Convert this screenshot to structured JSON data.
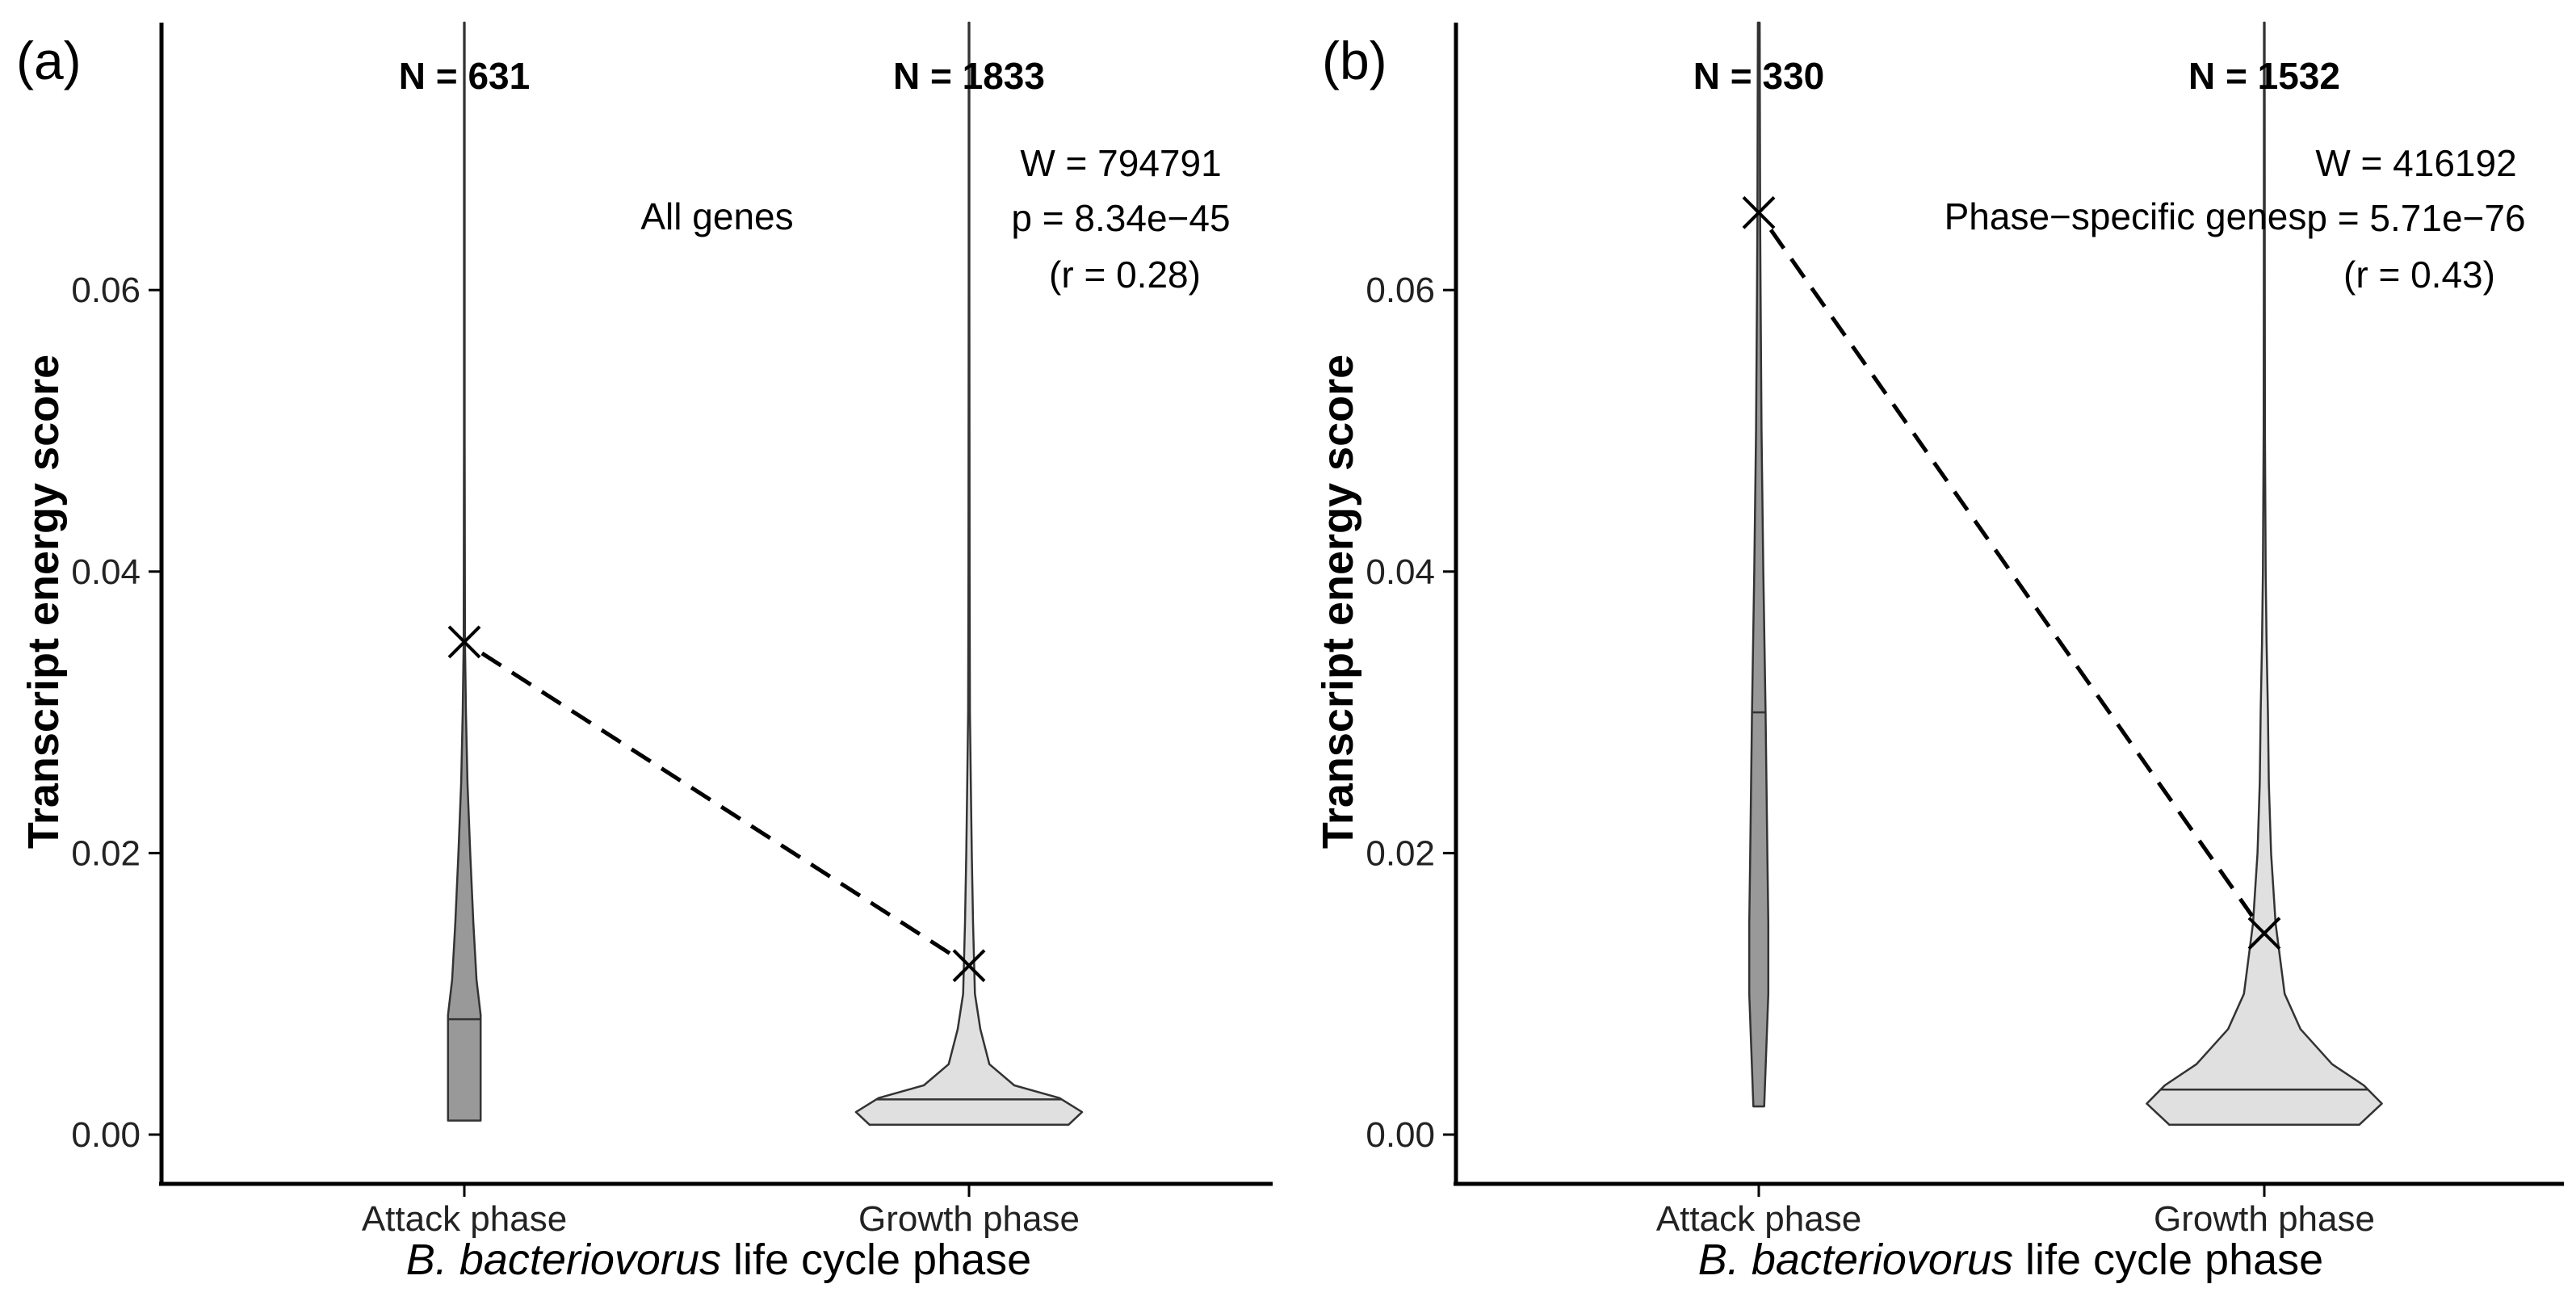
{
  "chart_data": [
    {
      "type": "violin",
      "panel_label": "(a)",
      "title": "All genes",
      "ylabel": "Transcript energy score",
      "xlabel_italic": "B. bacteriovorus",
      "xlabel_rest": " life cycle phase",
      "ylim": [
        -0.0035,
        0.079
      ],
      "yticks": [
        0.0,
        0.02,
        0.04,
        0.06
      ],
      "ytick_labels": [
        "0.00",
        "0.02",
        "0.04",
        "0.06"
      ],
      "categories": [
        "Attack phase",
        "Growth phase"
      ],
      "n_labels": [
        "N = 631",
        "N = 1833"
      ],
      "stats": [
        "W = 794791",
        "p = 8.34e−45",
        "(r = 0.28)"
      ],
      "means": [
        0.035,
        0.012
      ],
      "medians": [
        0.0082,
        0.0025
      ],
      "colors": [
        "#999999",
        "#e0e0e0"
      ],
      "violins": [
        {
          "name": "Attack phase",
          "max": 0.079,
          "profile": [
            [
              0.001,
              0.036
            ],
            [
              0.0085,
              0.036
            ],
            [
              0.011,
              0.027
            ],
            [
              0.015,
              0.02
            ],
            [
              0.02,
              0.013
            ],
            [
              0.025,
              0.007
            ],
            [
              0.03,
              0.0035
            ],
            [
              0.035,
              0.0015
            ],
            [
              0.05,
              0.0008
            ],
            [
              0.079,
              0.0007
            ]
          ]
        },
        {
          "name": "Growth phase",
          "max": 0.079,
          "profile": [
            [
              0.0007,
              0.22
            ],
            [
              0.0016,
              0.25
            ],
            [
              0.0026,
              0.2
            ],
            [
              0.0035,
              0.1
            ],
            [
              0.005,
              0.045
            ],
            [
              0.0075,
              0.025
            ],
            [
              0.01,
              0.013
            ],
            [
              0.015,
              0.009
            ],
            [
              0.02,
              0.006
            ],
            [
              0.025,
              0.004
            ],
            [
              0.03,
              0.002
            ],
            [
              0.04,
              0.0012
            ],
            [
              0.06,
              0.0008
            ],
            [
              0.079,
              0.0007
            ]
          ]
        }
      ]
    },
    {
      "type": "violin",
      "panel_label": "(b)",
      "title": "Phase−specific genes",
      "ylabel": "Transcript energy score",
      "xlabel_italic": "B. bacteriovorus",
      "xlabel_rest": " life cycle phase",
      "ylim": [
        -0.0035,
        0.079
      ],
      "yticks": [
        0.0,
        0.02,
        0.04,
        0.06
      ],
      "ytick_labels": [
        "0.00",
        "0.02",
        "0.04",
        "0.06"
      ],
      "categories": [
        "Attack phase",
        "Growth phase"
      ],
      "n_labels": [
        "N = 330",
        "N = 1532"
      ],
      "stats": [
        "W = 416192",
        "p = 5.71e−76",
        "(r = 0.43)"
      ],
      "means": [
        0.0655,
        0.0143
      ],
      "medians": [
        0.03,
        0.0032
      ],
      "colors": [
        "#999999",
        "#e0e0e0"
      ],
      "violins": [
        {
          "name": "Attack phase",
          "max": 0.079,
          "profile": [
            [
              0.002,
              0.012
            ],
            [
              0.01,
              0.021
            ],
            [
              0.015,
              0.021
            ],
            [
              0.02,
              0.019
            ],
            [
              0.025,
              0.017
            ],
            [
              0.03,
              0.015
            ],
            [
              0.04,
              0.01
            ],
            [
              0.05,
              0.006
            ],
            [
              0.06,
              0.004
            ],
            [
              0.065,
              0.003
            ],
            [
              0.079,
              0.002
            ]
          ]
        },
        {
          "name": "Growth phase",
          "max": 0.079,
          "profile": [
            [
              0.0007,
              0.21
            ],
            [
              0.0022,
              0.26
            ],
            [
              0.0035,
              0.22
            ],
            [
              0.005,
              0.15
            ],
            [
              0.0075,
              0.08
            ],
            [
              0.01,
              0.045
            ],
            [
              0.015,
              0.025
            ],
            [
              0.02,
              0.015
            ],
            [
              0.025,
              0.01
            ],
            [
              0.03,
              0.008
            ],
            [
              0.035,
              0.005
            ],
            [
              0.04,
              0.003
            ],
            [
              0.05,
              0.0015
            ],
            [
              0.06,
              0.001
            ],
            [
              0.079,
              0.0008
            ]
          ]
        }
      ]
    }
  ]
}
